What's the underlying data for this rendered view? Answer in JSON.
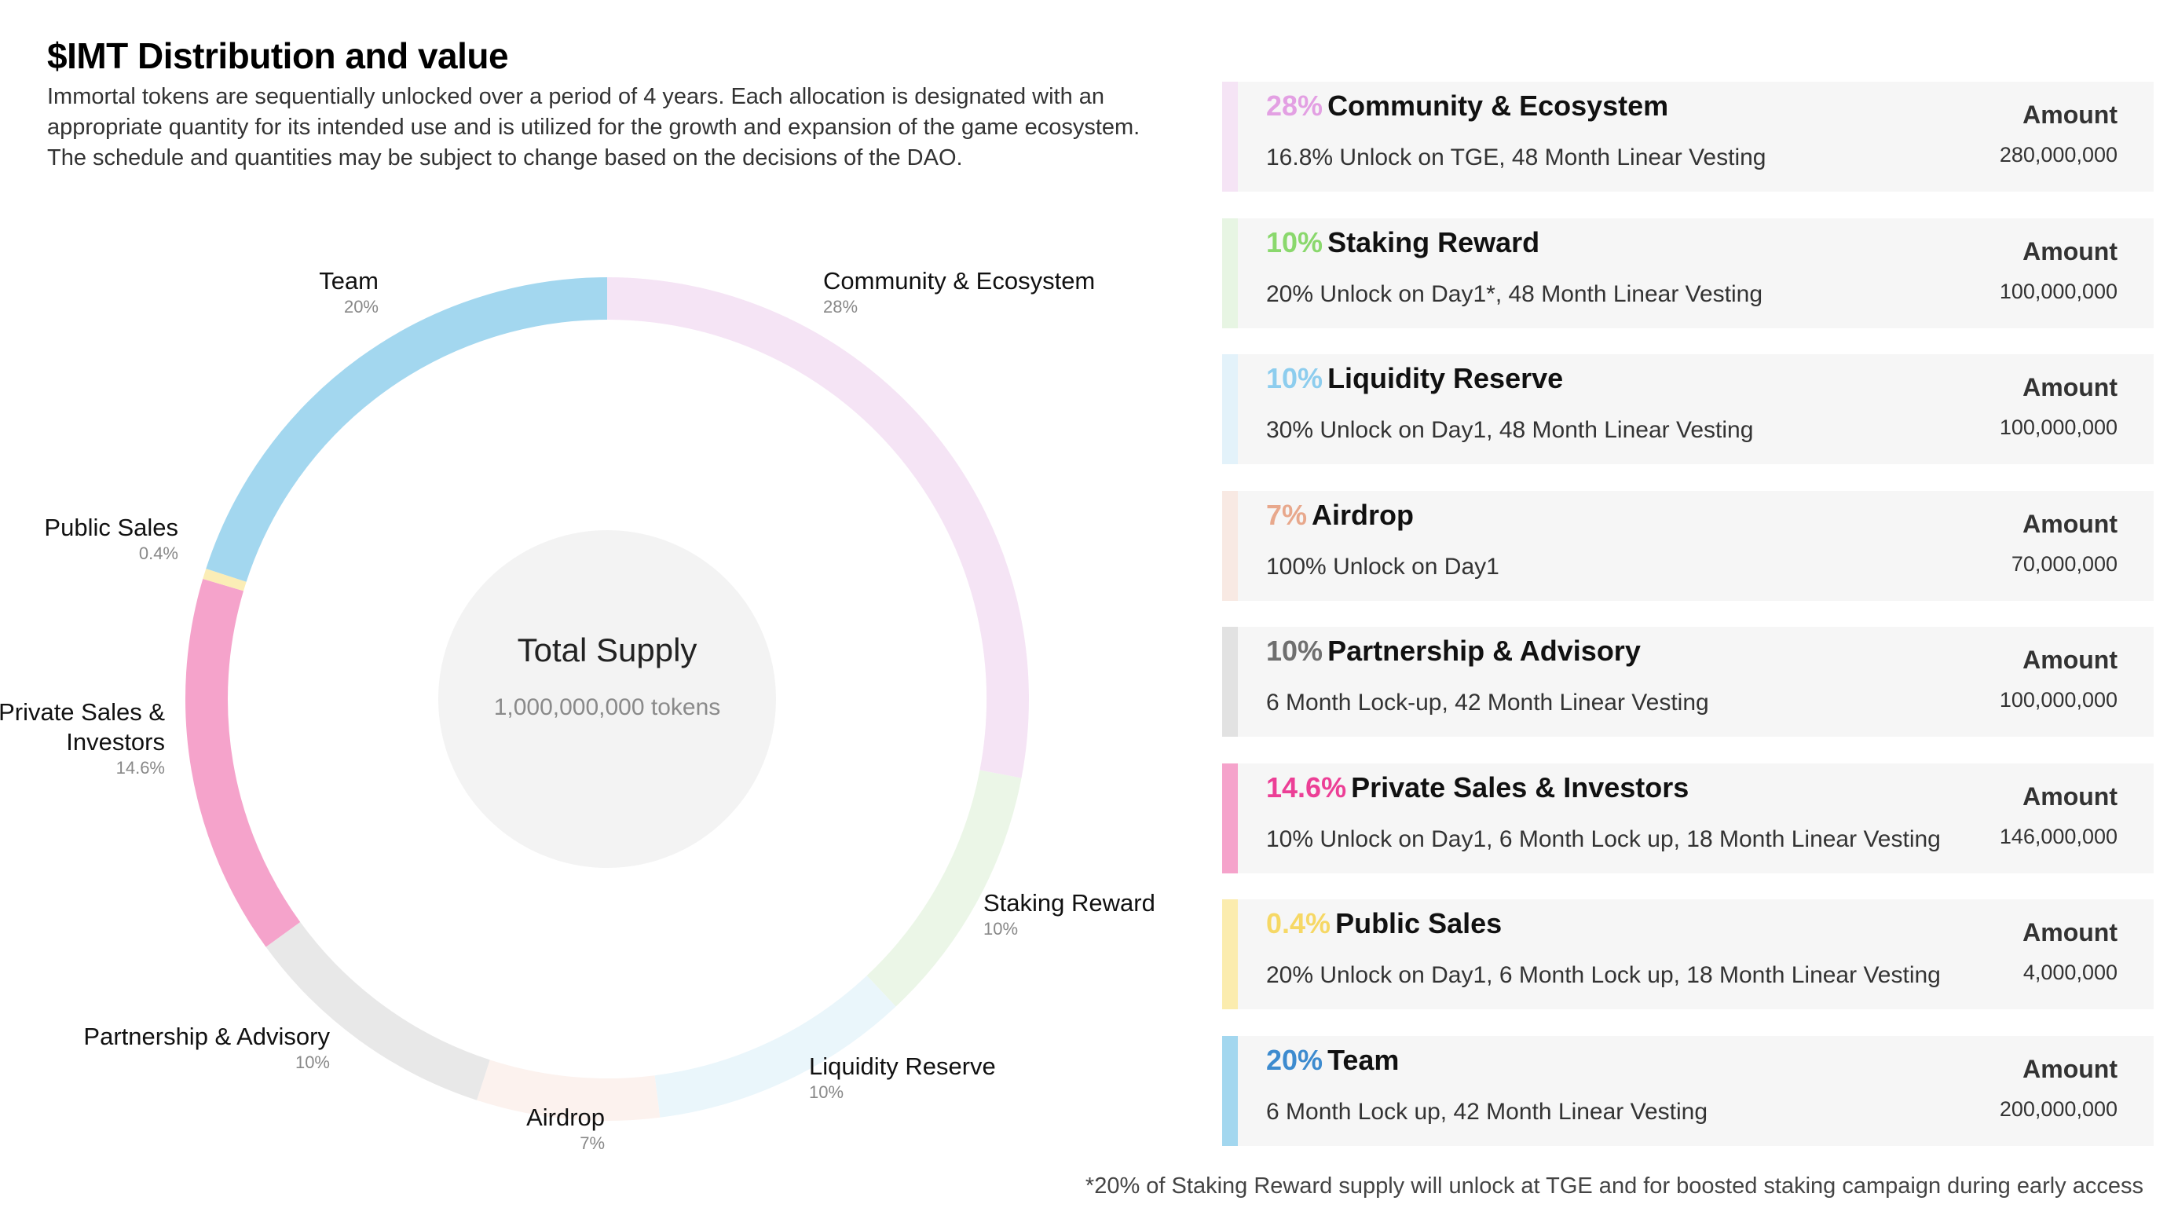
{
  "title": "$IMT Distribution and value",
  "description": "Immortal tokens are sequentially unlocked over a period of 4 years. Each allocation is designated with an appropriate quantity for its intended use and is utilized for the growth and expansion of the game ecosystem. The schedule and quantities may be subject to change based on the decisions of the DAO.",
  "center": {
    "title": "Total Supply",
    "subtitle": "1,000,000,000 tokens"
  },
  "chart_data": {
    "type": "pie",
    "style": "donut",
    "series": [
      {
        "name": "Community & Ecosystem",
        "value": 28,
        "pct_label": "28%",
        "color": "#f5e4f5"
      },
      {
        "name": "Staking Reward",
        "value": 10,
        "pct_label": "10%",
        "color": "#ebf6e7"
      },
      {
        "name": "Liquidity Reserve",
        "value": 10,
        "pct_label": "10%",
        "color": "#eaf6fb"
      },
      {
        "name": "Airdrop",
        "value": 7,
        "pct_label": "7%",
        "color": "#fcf2ee"
      },
      {
        "name": "Partnership & Advisory",
        "value": 10,
        "pct_label": "10%",
        "color": "#e8e8e8"
      },
      {
        "name": "Private Sales & Investors",
        "value": 14.6,
        "pct_label": "14.6%",
        "color": "#f5a3cb"
      },
      {
        "name": "Public Sales",
        "value": 0.4,
        "pct_label": "0.4%",
        "color": "#fbedb6"
      },
      {
        "name": "Team",
        "value": 20,
        "pct_label": "20%",
        "color": "#a3d7ef"
      }
    ]
  },
  "cards": [
    {
      "pct": "28%",
      "name": "Community & Ecosystem",
      "detail": "16.8% Unlock on TGE, 48 Month Linear Vesting",
      "amount_label": "Amount",
      "amount": "280,000,000",
      "pct_color": "#e3a0e3",
      "bar_color": "#f5e4f5"
    },
    {
      "pct": "10%",
      "name": "Staking Reward",
      "detail": "20% Unlock on Day1*, 48 Month Linear Vesting",
      "amount_label": "Amount",
      "amount": "100,000,000",
      "pct_color": "#8ad86d",
      "bar_color": "#e7f5e3"
    },
    {
      "pct": "10%",
      "name": "Liquidity Reserve",
      "detail": "30% Unlock on Day1, 48 Month Linear Vesting",
      "amount_label": "Amount",
      "amount": "100,000,000",
      "pct_color": "#8dcdee",
      "bar_color": "#e3f2fa"
    },
    {
      "pct": "7%",
      "name": "Airdrop",
      "detail": "100% Unlock on Day1",
      "amount_label": "Amount",
      "amount": "70,000,000",
      "pct_color": "#e8a88c",
      "bar_color": "#f8e9e3"
    },
    {
      "pct": "10%",
      "name": "Partnership & Advisory",
      "detail": "6 Month Lock-up, 42 Month Linear Vesting",
      "amount_label": "Amount",
      "amount": "100,000,000",
      "pct_color": "#6f6f6f",
      "bar_color": "#e2e2e2"
    },
    {
      "pct": "14.6%",
      "name": "Private Sales & Investors",
      "detail": "10% Unlock on Day1, 6 Month Lock up, 18 Month Linear Vesting",
      "amount_label": "Amount",
      "amount": "146,000,000",
      "pct_color": "#ec3f96",
      "bar_color": "#f5a3cb"
    },
    {
      "pct": "0.4%",
      "name": "Public Sales",
      "detail": "20% Unlock on Day1, 6 Month Lock up, 18 Month Linear Vesting",
      "amount_label": "Amount",
      "amount": "4,000,000",
      "pct_color": "#f6d865",
      "bar_color": "#fbecae"
    },
    {
      "pct": "20%",
      "name": "Team",
      "detail": "6 Month Lock up, 42 Month Linear Vesting",
      "amount_label": "Amount",
      "amount": "200,000,000",
      "pct_color": "#3d8bcf",
      "bar_color": "#a3d7ef"
    }
  ],
  "footnote": "*20% of Staking Reward supply will unlock at TGE and for boosted staking campaign during early access"
}
